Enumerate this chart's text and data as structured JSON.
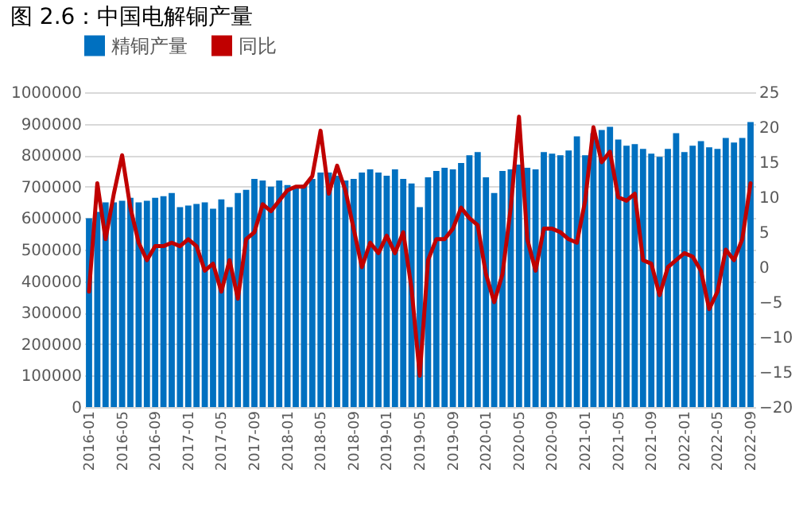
{
  "chart_data": {
    "type": "bar",
    "title": "图 2.6：中国电解铜产量",
    "categories": [
      "2016-01",
      null,
      null,
      null,
      "2016-05",
      null,
      null,
      null,
      "2016-09",
      null,
      null,
      null,
      "2017-01",
      null,
      null,
      null,
      "2017-05",
      null,
      null,
      null,
      "2017-09",
      null,
      null,
      null,
      "2018-01",
      null,
      null,
      null,
      "2018-05",
      null,
      null,
      null,
      "2018-09",
      null,
      null,
      null,
      "2019-01",
      null,
      null,
      null,
      "2019-05",
      null,
      null,
      null,
      "2019-09",
      null,
      null,
      null,
      "2020-01",
      null,
      null,
      null,
      "2020-05",
      null,
      null,
      null,
      "2020-09",
      null,
      null,
      null,
      "2021-01",
      null,
      null,
      null,
      "2021-05",
      null,
      null,
      null,
      "2021-09",
      null,
      null,
      null,
      "2022-01",
      null,
      null,
      null,
      "2022-05",
      null,
      null,
      null,
      "2022-09"
    ],
    "series": [
      {
        "name": "精铜产量",
        "color": "#0070c0",
        "values": [
          600000,
          620000,
          650000,
          650000,
          655000,
          665000,
          650000,
          655000,
          665000,
          670000,
          680000,
          635000,
          640000,
          645000,
          650000,
          630000,
          660000,
          635000,
          680000,
          690000,
          725000,
          720000,
          700000,
          720000,
          705000,
          700000,
          705000,
          725000,
          745000,
          745000,
          735000,
          720000,
          725000,
          745000,
          755000,
          745000,
          735000,
          755000,
          725000,
          710000,
          635000,
          730000,
          750000,
          760000,
          755000,
          775000,
          800000,
          810000,
          730000,
          680000,
          750000,
          755000,
          770000,
          760000,
          755000,
          810000,
          805000,
          800000,
          815000,
          860000,
          800000,
          870000,
          880000,
          890000,
          850000,
          830000,
          835000,
          820000,
          805000,
          795000,
          820000,
          870000,
          810000,
          830000,
          845000,
          825000,
          820000,
          855000,
          840000,
          855000,
          905000
        ]
      },
      {
        "name": "同比",
        "type": "line",
        "axis": "y2",
        "color": "#c00000",
        "values": [
          -3.5,
          12,
          4,
          10.5,
          16,
          8.5,
          3.5,
          1,
          3,
          3,
          3.5,
          3,
          4,
          3,
          -0.5,
          0.5,
          -3.5,
          1,
          -4.5,
          4,
          5,
          9,
          8,
          9.5,
          11,
          11.5,
          11.5,
          13,
          19.5,
          10.5,
          14.5,
          11,
          5.5,
          0,
          3.5,
          2,
          4.5,
          2,
          5,
          -3,
          -15.5,
          1,
          4,
          4,
          5.5,
          8.5,
          7,
          6,
          -1,
          -5,
          -1,
          8.5,
          21.5,
          4,
          -0.5,
          5.5,
          5.5,
          5,
          4,
          3.5,
          9.5,
          20,
          15,
          16.5,
          10,
          9.5,
          10.5,
          1,
          0.5,
          -4,
          0,
          1,
          2,
          1.5,
          -0.5,
          -6,
          -3.5,
          2.5,
          1,
          4,
          12
        ]
      }
    ],
    "ylim": [
      0,
      1000000
    ],
    "yticks": [
      0,
      100000,
      200000,
      300000,
      400000,
      500000,
      600000,
      700000,
      800000,
      900000,
      1000000
    ],
    "y2lim": [
      -20,
      25
    ],
    "y2ticks": [
      -20,
      -15,
      -10,
      -5,
      0,
      5,
      10,
      15,
      20,
      25
    ],
    "grid": "y",
    "legend": "top"
  }
}
